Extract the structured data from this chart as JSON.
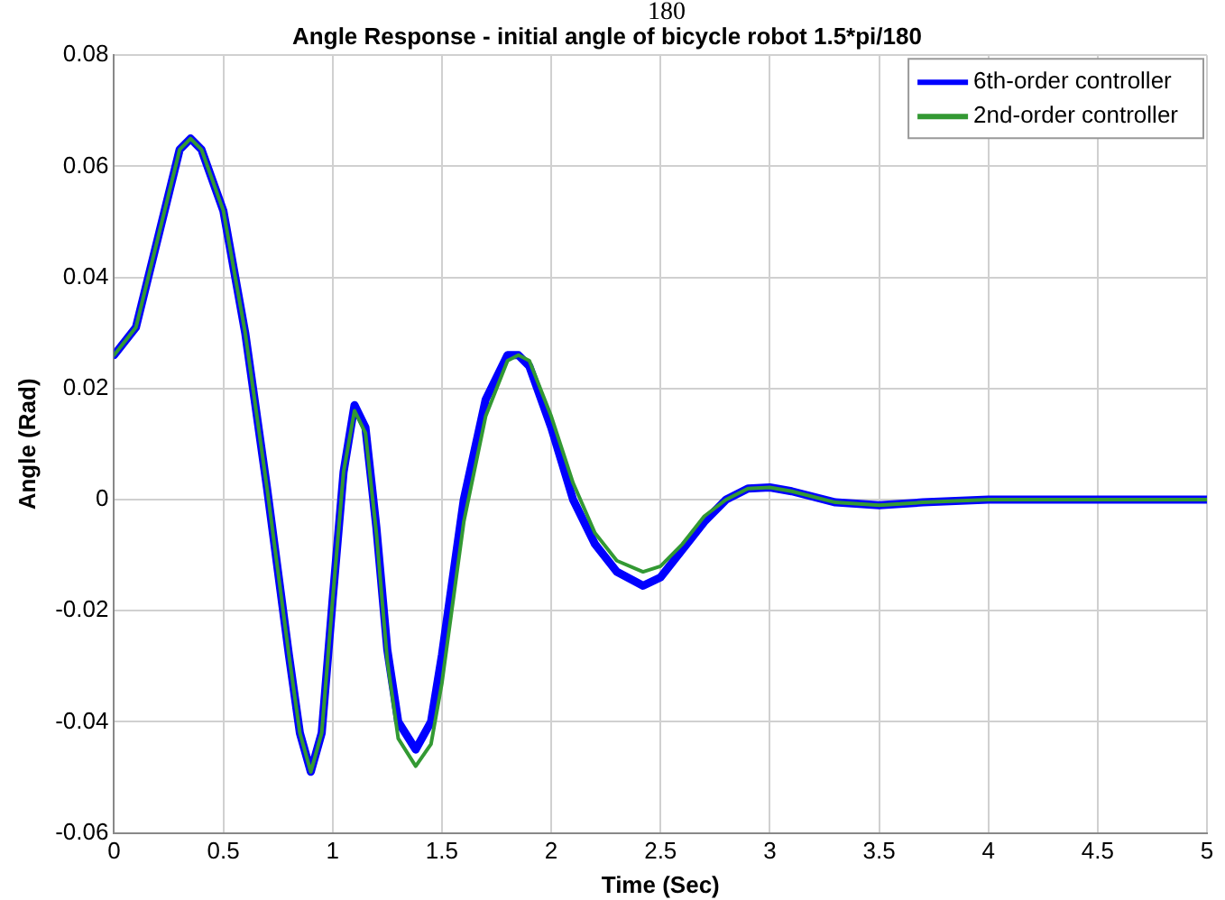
{
  "chart_data": {
    "type": "line",
    "title": "Angle Response - initial angle of bicycle robot 1.5*pi/180",
    "xlabel": "Time (Sec)",
    "ylabel": "Angle (Rad)",
    "annotations": [
      "180"
    ],
    "xlim": [
      0,
      5
    ],
    "xticks": [
      0,
      0.5,
      1,
      1.5,
      2,
      2.5,
      3,
      3.5,
      4,
      4.5,
      5
    ],
    "ylim": [
      -0.06,
      0.08
    ],
    "yticks": [
      -0.06,
      -0.04,
      -0.02,
      0,
      0.02,
      0.04,
      0.06,
      0.08
    ],
    "grid": true,
    "legend": "top right",
    "line_style": "solid",
    "series": [
      {
        "name": "6th-order controller",
        "color": "#0000ff",
        "x": [
          0,
          0.1,
          0.2,
          0.3,
          0.35,
          0.4,
          0.5,
          0.6,
          0.7,
          0.75,
          0.8,
          0.85,
          0.9,
          0.95,
          1.0,
          1.05,
          1.1,
          1.15,
          1.2,
          1.25,
          1.3,
          1.38,
          1.45,
          1.5,
          1.6,
          1.7,
          1.8,
          1.85,
          1.9,
          2.0,
          2.1,
          2.2,
          2.3,
          2.42,
          2.5,
          2.6,
          2.7,
          2.8,
          2.9,
          3.0,
          3.1,
          3.3,
          3.5,
          3.7,
          4.0,
          4.5,
          5.0
        ],
        "values": [
          0.026,
          0.031,
          0.047,
          0.063,
          0.065,
          0.063,
          0.052,
          0.03,
          0.002,
          -0.013,
          -0.028,
          -0.042,
          -0.049,
          -0.042,
          -0.018,
          0.005,
          0.017,
          0.013,
          -0.005,
          -0.027,
          -0.04,
          -0.045,
          -0.04,
          -0.028,
          0.0,
          0.018,
          0.026,
          0.026,
          0.024,
          0.013,
          0.0,
          -0.008,
          -0.013,
          -0.0155,
          -0.014,
          -0.009,
          -0.004,
          0.0,
          0.002,
          0.0022,
          0.0015,
          -0.0005,
          -0.001,
          -0.0005,
          0.0,
          0.0,
          0.0
        ]
      },
      {
        "name": "2nd-order controller",
        "color": "#339933",
        "x": [
          0,
          0.1,
          0.2,
          0.3,
          0.35,
          0.4,
          0.5,
          0.6,
          0.7,
          0.75,
          0.8,
          0.85,
          0.9,
          0.95,
          1.0,
          1.05,
          1.1,
          1.15,
          1.2,
          1.25,
          1.3,
          1.38,
          1.45,
          1.5,
          1.6,
          1.7,
          1.8,
          1.85,
          1.9,
          2.0,
          2.1,
          2.2,
          2.3,
          2.42,
          2.5,
          2.6,
          2.7,
          2.8,
          2.9,
          3.0,
          3.1,
          3.3,
          3.5,
          3.7,
          4.0,
          4.5,
          5.0
        ],
        "values": [
          0.026,
          0.031,
          0.047,
          0.063,
          0.065,
          0.063,
          0.052,
          0.03,
          0.002,
          -0.013,
          -0.028,
          -0.042,
          -0.049,
          -0.042,
          -0.018,
          0.005,
          0.016,
          0.012,
          -0.006,
          -0.029,
          -0.043,
          -0.048,
          -0.044,
          -0.033,
          -0.004,
          0.015,
          0.025,
          0.026,
          0.025,
          0.015,
          0.003,
          -0.006,
          -0.011,
          -0.013,
          -0.012,
          -0.008,
          -0.003,
          0.0,
          0.002,
          0.0022,
          0.0015,
          -0.0005,
          -0.001,
          -0.0005,
          0.0,
          0.0,
          0.0
        ]
      }
    ]
  }
}
